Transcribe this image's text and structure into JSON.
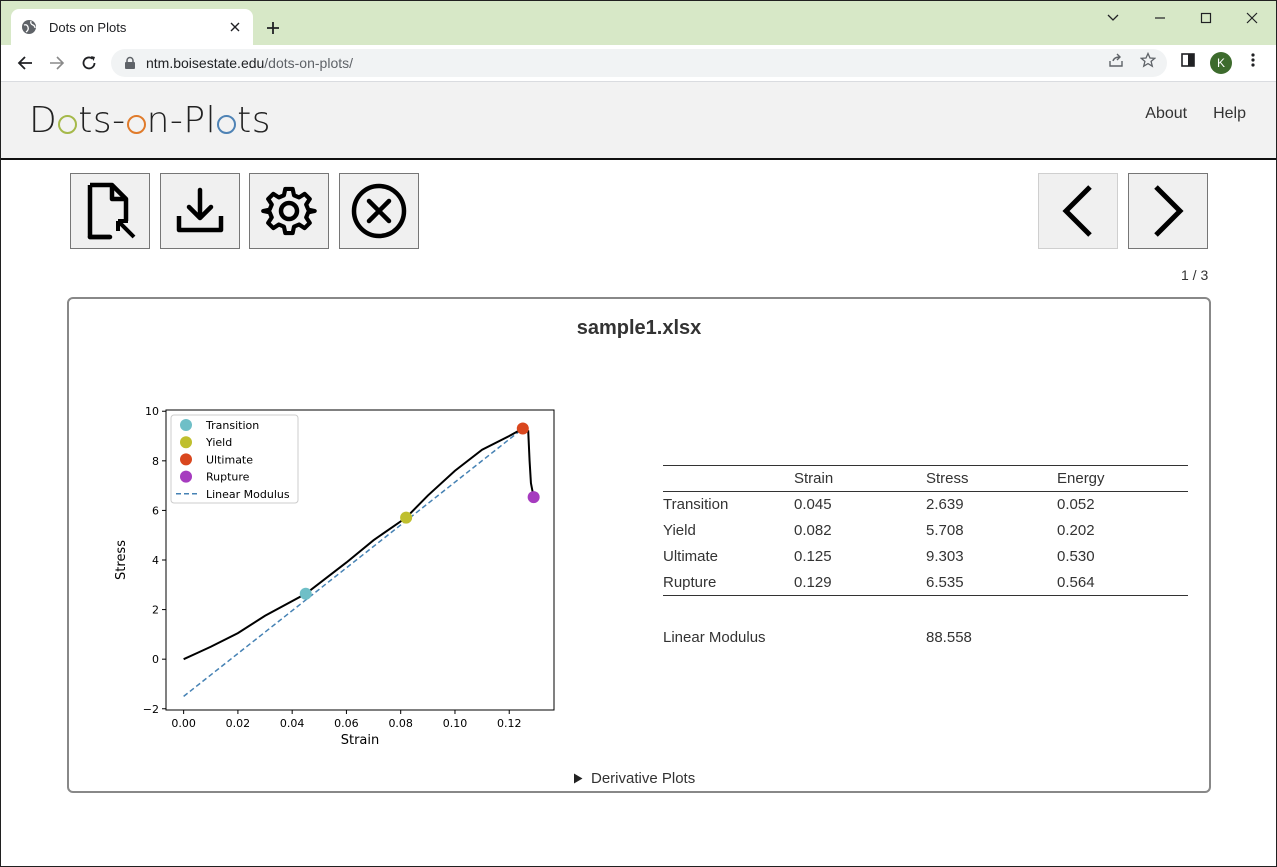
{
  "browser": {
    "tab_title": "Dots on Plots",
    "url_host": "ntm.boisestate.edu",
    "url_path": "/dots-on-plots/",
    "profile_initial": "K"
  },
  "header": {
    "logo_parts": [
      "D",
      "ts-",
      "n-Pl",
      "ts"
    ],
    "logo_ring_colors": [
      "#a5b94a",
      "#e07b2b",
      "#4f83b5"
    ],
    "nav": [
      "About",
      "Help"
    ]
  },
  "toolbar": {
    "buttons": [
      {
        "icon": "open-file-icon"
      },
      {
        "icon": "download-icon"
      },
      {
        "icon": "gear-icon"
      },
      {
        "icon": "close-circle-icon"
      },
      {
        "icon": "chevron-left-icon"
      },
      {
        "icon": "chevron-right-icon"
      }
    ],
    "page_indicator": "1 / 3"
  },
  "card": {
    "title": "sample1.xlsx",
    "derivative_label": "Derivative Plots"
  },
  "results_table": {
    "headers": [
      "",
      "Strain",
      "Stress",
      "Energy"
    ],
    "rows": [
      [
        "Transition",
        "0.045",
        "2.639",
        "0.052"
      ],
      [
        "Yield",
        "0.082",
        "5.708",
        "0.202"
      ],
      [
        "Ultimate",
        "0.125",
        "9.303",
        "0.530"
      ],
      [
        "Rupture",
        "0.129",
        "6.535",
        "0.564"
      ]
    ],
    "modulus_label": "Linear Modulus",
    "modulus_value": "88.558"
  },
  "chart_data": {
    "type": "line",
    "title": "",
    "xlabel": "Strain",
    "ylabel": "Stress",
    "xlim": [
      -0.0065,
      0.1365
    ],
    "ylim": [
      -2.05,
      10.05
    ],
    "xticks": [
      0.0,
      0.02,
      0.04,
      0.06,
      0.08,
      0.1,
      0.12
    ],
    "xtick_labels": [
      "0.00",
      "0.02",
      "0.04",
      "0.06",
      "0.08",
      "0.10",
      "0.12"
    ],
    "yticks": [
      -2,
      0,
      2,
      4,
      6,
      8,
      10
    ],
    "ytick_labels": [
      "−2",
      "0",
      "2",
      "4",
      "6",
      "8",
      "10"
    ],
    "legend_placement": "top-left",
    "legend": [
      {
        "name": "Transition",
        "kind": "marker",
        "color": "#6fbfc7"
      },
      {
        "name": "Yield",
        "kind": "marker",
        "color": "#bfbf2e"
      },
      {
        "name": "Ultimate",
        "kind": "marker",
        "color": "#d9471e"
      },
      {
        "name": "Rupture",
        "kind": "marker",
        "color": "#a63bbf"
      },
      {
        "name": "Linear Modulus",
        "kind": "dashed",
        "color": "#4682b4"
      }
    ],
    "curve": {
      "color": "#000000",
      "x": [
        0.0,
        0.005,
        0.01,
        0.02,
        0.03,
        0.045,
        0.06,
        0.07,
        0.082,
        0.09,
        0.1,
        0.11,
        0.12,
        0.125,
        0.127,
        0.1275,
        0.128,
        0.129
      ],
      "y": [
        0.0,
        0.25,
        0.5,
        1.05,
        1.75,
        2.639,
        3.9,
        4.8,
        5.708,
        6.6,
        7.6,
        8.45,
        9.0,
        9.303,
        9.2,
        8.0,
        7.1,
        6.535
      ]
    },
    "modulus_line": {
      "color": "#4682b4",
      "x": [
        0.0,
        0.125
      ],
      "y": [
        -1.5,
        9.3
      ]
    },
    "points": [
      {
        "name": "Transition",
        "x": 0.045,
        "y": 2.639,
        "color": "#6fbfc7"
      },
      {
        "name": "Yield",
        "x": 0.082,
        "y": 5.708,
        "color": "#bfbf2e"
      },
      {
        "name": "Ultimate",
        "x": 0.125,
        "y": 9.303,
        "color": "#d9471e"
      },
      {
        "name": "Rupture",
        "x": 0.129,
        "y": 6.535,
        "color": "#a63bbf"
      }
    ]
  }
}
